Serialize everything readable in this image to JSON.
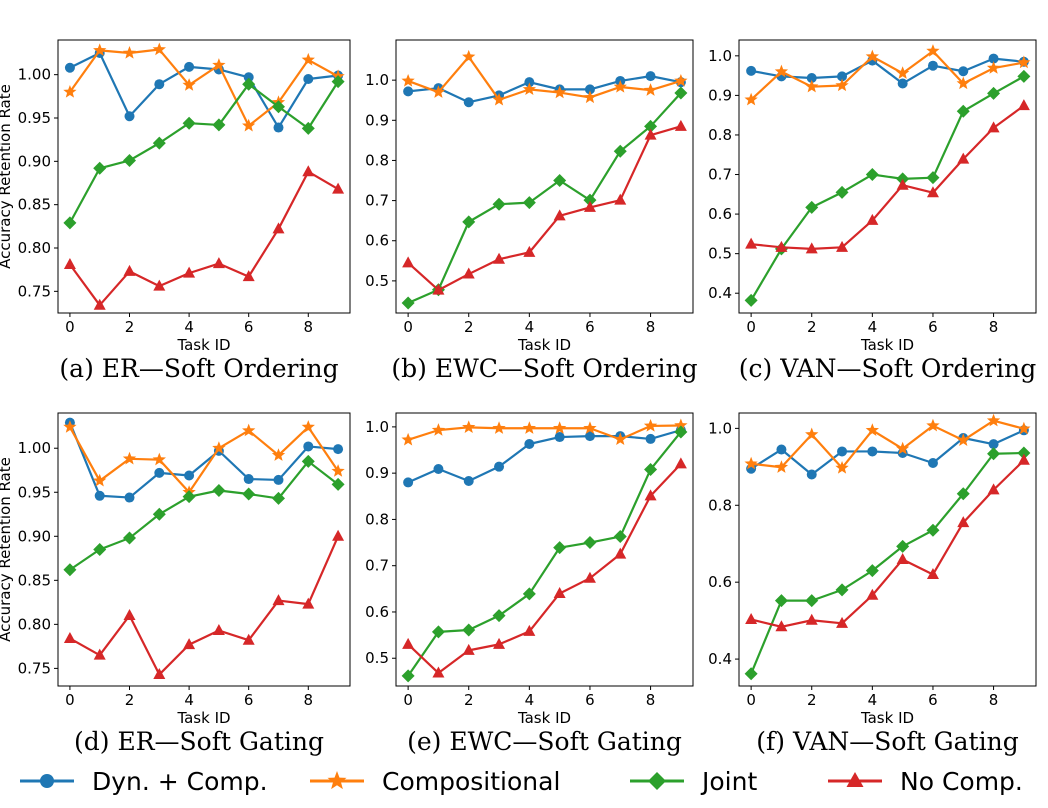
{
  "chart_data": {
    "legend": [
      {
        "name": "Dyn. + Comp.",
        "color": "#1f77b4",
        "marker": "circle"
      },
      {
        "name": "Compositional",
        "color": "#ff7f0e",
        "marker": "star"
      },
      {
        "name": "Joint",
        "color": "#2ca02c",
        "marker": "diamond"
      },
      {
        "name": "No Comp.",
        "color": "#d62728",
        "marker": "triangle"
      }
    ],
    "panels": [
      {
        "type": "line",
        "caption": "(a) ER—Soft Ordering",
        "xlabel": "Task ID",
        "ylabel": "Accuracy Retention Rate",
        "x": [
          0,
          1,
          2,
          3,
          4,
          5,
          6,
          7,
          8,
          9
        ],
        "xticks": [
          "0",
          "2",
          "4",
          "6",
          "8"
        ],
        "xlim": [
          -0.4,
          9.4
        ],
        "ylim": [
          0.725,
          1.04
        ],
        "yticks": [
          "0.75",
          "0.80",
          "0.85",
          "0.90",
          "0.95",
          "1.00"
        ],
        "series": [
          {
            "name": "Dyn. + Comp.",
            "values": [
              1.008,
              1.025,
              0.952,
              0.989,
              1.009,
              1.006,
              0.997,
              0.939,
              0.995,
              0.999
            ]
          },
          {
            "name": "Compositional",
            "values": [
              0.98,
              1.028,
              1.025,
              1.029,
              0.988,
              1.011,
              0.941,
              0.968,
              1.017,
              0.998
            ]
          },
          {
            "name": "Joint",
            "values": [
              0.829,
              0.892,
              0.901,
              0.921,
              0.944,
              0.942,
              0.989,
              0.963,
              0.938,
              0.992
            ]
          },
          {
            "name": "No Comp.",
            "values": [
              0.781,
              0.734,
              0.773,
              0.756,
              0.771,
              0.782,
              0.767,
              0.822,
              0.888,
              0.868
            ]
          }
        ]
      },
      {
        "type": "line",
        "caption": "(b) EWC—Soft Ordering",
        "xlabel": "Task ID",
        "ylabel": "",
        "x": [
          0,
          1,
          2,
          3,
          4,
          5,
          6,
          7,
          8,
          9
        ],
        "xticks": [
          "0",
          "2",
          "4",
          "6",
          "8"
        ],
        "xlim": [
          -0.4,
          9.4
        ],
        "ylim": [
          0.42,
          1.1
        ],
        "yticks": [
          "0.5",
          "0.6",
          "0.7",
          "0.8",
          "0.9",
          "1.0"
        ],
        "series": [
          {
            "name": "Dyn. + Comp.",
            "values": [
              0.972,
              0.98,
              0.945,
              0.962,
              0.995,
              0.977,
              0.977,
              0.998,
              1.01,
              0.995
            ]
          },
          {
            "name": "Compositional",
            "values": [
              0.998,
              0.97,
              1.058,
              0.951,
              0.977,
              0.969,
              0.957,
              0.983,
              0.975,
              0.998
            ]
          },
          {
            "name": "Joint",
            "values": [
              0.445,
              0.478,
              0.647,
              0.691,
              0.695,
              0.75,
              0.701,
              0.823,
              0.885,
              0.968
            ]
          },
          {
            "name": "No Comp.",
            "values": [
              0.545,
              0.477,
              0.517,
              0.554,
              0.571,
              0.662,
              0.683,
              0.701,
              0.863,
              0.885
            ]
          }
        ]
      },
      {
        "type": "line",
        "caption": "(c) VAN—Soft Ordering",
        "xlabel": "Task ID",
        "ylabel": "",
        "x": [
          0,
          1,
          2,
          3,
          4,
          5,
          6,
          7,
          8,
          9
        ],
        "xticks": [
          "0",
          "2",
          "4",
          "6",
          "8"
        ],
        "xlim": [
          -0.4,
          9.4
        ],
        "ylim": [
          0.35,
          1.04
        ],
        "yticks": [
          "0.4",
          "0.5",
          "0.6",
          "0.7",
          "0.8",
          "0.9",
          "1.0"
        ],
        "series": [
          {
            "name": "Dyn. + Comp.",
            "values": [
              0.962,
              0.948,
              0.944,
              0.948,
              0.988,
              0.93,
              0.975,
              0.961,
              0.993,
              0.985
            ]
          },
          {
            "name": "Compositional",
            "values": [
              0.889,
              0.96,
              0.922,
              0.925,
              0.998,
              0.956,
              1.012,
              0.93,
              0.969,
              0.983
            ]
          },
          {
            "name": "Joint",
            "values": [
              0.382,
              0.512,
              0.617,
              0.655,
              0.7,
              0.689,
              0.692,
              0.86,
              0.905,
              0.948
            ]
          },
          {
            "name": "No Comp.",
            "values": [
              0.524,
              0.516,
              0.512,
              0.516,
              0.584,
              0.673,
              0.654,
              0.739,
              0.818,
              0.874
            ]
          }
        ]
      },
      {
        "type": "line",
        "caption": "(d) ER—Soft Gating",
        "xlabel": "Task ID",
        "ylabel": "Accuracy Retention Rate",
        "x": [
          0,
          1,
          2,
          3,
          4,
          5,
          6,
          7,
          8,
          9
        ],
        "xticks": [
          "0",
          "2",
          "4",
          "6",
          "8"
        ],
        "xlim": [
          -0.4,
          9.4
        ],
        "ylim": [
          0.73,
          1.04
        ],
        "yticks": [
          "0.75",
          "0.80",
          "0.85",
          "0.90",
          "0.95",
          "1.00"
        ],
        "series": [
          {
            "name": "Dyn. + Comp.",
            "values": [
              1.029,
              0.946,
              0.944,
              0.972,
              0.969,
              0.997,
              0.965,
              0.964,
              1.002,
              0.999
            ]
          },
          {
            "name": "Compositional",
            "values": [
              1.024,
              0.963,
              0.988,
              0.987,
              0.95,
              1.0,
              1.02,
              0.992,
              1.024,
              0.974
            ]
          },
          {
            "name": "Joint",
            "values": [
              0.862,
              0.885,
              0.898,
              0.925,
              0.945,
              0.952,
              0.948,
              0.943,
              0.985,
              0.959
            ]
          },
          {
            "name": "No Comp.",
            "values": [
              0.784,
              0.765,
              0.81,
              0.743,
              0.777,
              0.793,
              0.782,
              0.827,
              0.823,
              0.9
            ]
          }
        ]
      },
      {
        "type": "line",
        "caption": "(e) EWC—Soft Gating",
        "xlabel": "Task ID",
        "ylabel": "",
        "x": [
          0,
          1,
          2,
          3,
          4,
          5,
          6,
          7,
          8,
          9
        ],
        "xticks": [
          "0",
          "2",
          "4",
          "6",
          "8"
        ],
        "xlim": [
          -0.4,
          9.4
        ],
        "ylim": [
          0.44,
          1.03
        ],
        "yticks": [
          "0.5",
          "0.6",
          "0.7",
          "0.8",
          "0.9",
          "1.0"
        ],
        "series": [
          {
            "name": "Dyn. + Comp.",
            "values": [
              0.88,
              0.909,
              0.883,
              0.914,
              0.963,
              0.978,
              0.98,
              0.98,
              0.974,
              0.993
            ]
          },
          {
            "name": "Compositional",
            "values": [
              0.972,
              0.993,
              0.999,
              0.997,
              0.997,
              0.997,
              0.997,
              0.973,
              1.002,
              1.003
            ]
          },
          {
            "name": "Joint",
            "values": [
              0.462,
              0.557,
              0.561,
              0.592,
              0.639,
              0.739,
              0.75,
              0.763,
              0.908,
              0.989
            ]
          },
          {
            "name": "No Comp.",
            "values": [
              0.53,
              0.468,
              0.517,
              0.53,
              0.558,
              0.64,
              0.673,
              0.725,
              0.851,
              0.92
            ]
          }
        ]
      },
      {
        "type": "line",
        "caption": "(f) VAN—Soft Gating",
        "xlabel": "Task ID",
        "ylabel": "",
        "x": [
          0,
          1,
          2,
          3,
          4,
          5,
          6,
          7,
          8,
          9
        ],
        "xticks": [
          "0",
          "2",
          "4",
          "6",
          "8"
        ],
        "xlim": [
          -0.4,
          9.4
        ],
        "ylim": [
          0.33,
          1.04
        ],
        "yticks": [
          "0.4",
          "0.6",
          "0.8",
          "1.0"
        ],
        "series": [
          {
            "name": "Dyn. + Comp.",
            "values": [
              0.895,
              0.945,
              0.88,
              0.94,
              0.94,
              0.936,
              0.91,
              0.975,
              0.959,
              0.995
            ]
          },
          {
            "name": "Compositional",
            "values": [
              0.908,
              0.899,
              0.984,
              0.897,
              0.995,
              0.947,
              1.007,
              0.969,
              1.02,
              0.999
            ]
          },
          {
            "name": "Joint",
            "values": [
              0.362,
              0.552,
              0.552,
              0.58,
              0.63,
              0.693,
              0.735,
              0.83,
              0.934,
              0.936
            ]
          },
          {
            "name": "No Comp.",
            "values": [
              0.503,
              0.484,
              0.501,
              0.493,
              0.566,
              0.659,
              0.62,
              0.755,
              0.84,
              0.917
            ]
          }
        ]
      }
    ]
  }
}
